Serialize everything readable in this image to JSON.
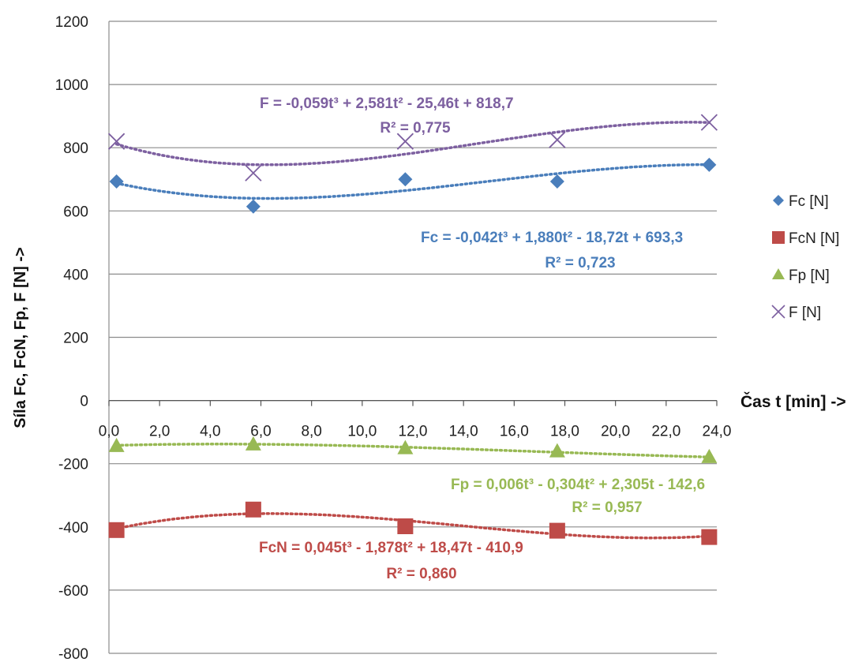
{
  "chart_data": {
    "type": "scatter",
    "ylabel": "Síla Fc, FcN, Fp, F [N] ->",
    "xlabel": "Čas t [min]  ->",
    "xlim": [
      0,
      24
    ],
    "ylim": [
      -800,
      1200
    ],
    "x_ticks": [
      "0,0",
      "2,0",
      "4,0",
      "6,0",
      "8,0",
      "10,0",
      "12,0",
      "14,0",
      "16,0",
      "18,0",
      "20,0",
      "22,0",
      "24,0"
    ],
    "y_ticks": [
      "-800",
      "-600",
      "-400",
      "-200",
      "0",
      "200",
      "400",
      "600",
      "800",
      "1000",
      "1200"
    ],
    "grid": "horizontal",
    "trendline": "polynomial, order 3, dotted",
    "legend_position": "right",
    "series": [
      {
        "name": "Fc [N]",
        "color": "#4a7ebb",
        "marker": "diamond",
        "x": [
          0.3,
          5.7,
          11.7,
          17.7,
          23.7
        ],
        "y": [
          693,
          614,
          700,
          693,
          746
        ],
        "equation": "Fc = -0,042t³ + 1,880t² - 18,72t + 693,3",
        "r2": "R² = 0,723",
        "coef": [
          -0.042,
          1.88,
          -18.72,
          693.3
        ]
      },
      {
        "name": "FcN [N]",
        "color": "#be4b48",
        "marker": "square",
        "x": [
          0.3,
          5.7,
          11.7,
          17.7,
          23.7
        ],
        "y": [
          -410,
          -345,
          -398,
          -412,
          -432
        ],
        "equation": "FcN = 0,045t³ - 1,878t² + 18,47t - 410,9",
        "r2": "R² = 0,860",
        "coef": [
          0.045,
          -1.878,
          18.47,
          -410.9
        ]
      },
      {
        "name": "Fp [N]",
        "color": "#98b954",
        "marker": "triangle",
        "x": [
          0.3,
          5.7,
          11.7,
          17.7,
          23.7
        ],
        "y": [
          -143,
          -138,
          -150,
          -160,
          -178
        ],
        "equation": "Fp = 0,006t³ - 0,304t² + 2,305t - 142,6",
        "r2": "R² = 0,957",
        "coef": [
          0.006,
          -0.304,
          2.305,
          -142.6
        ]
      },
      {
        "name": "F [N]",
        "color": "#7d60a0",
        "marker": "x",
        "x": [
          0.3,
          5.7,
          11.7,
          17.7,
          23.7
        ],
        "y": [
          820,
          720,
          820,
          825,
          880
        ],
        "equation": "F = -0,059t³ + 2,581t² - 25,46t + 818,7",
        "r2": "R² = 0,775",
        "coef": [
          -0.059,
          2.581,
          -25.46,
          818.7
        ]
      }
    ]
  }
}
